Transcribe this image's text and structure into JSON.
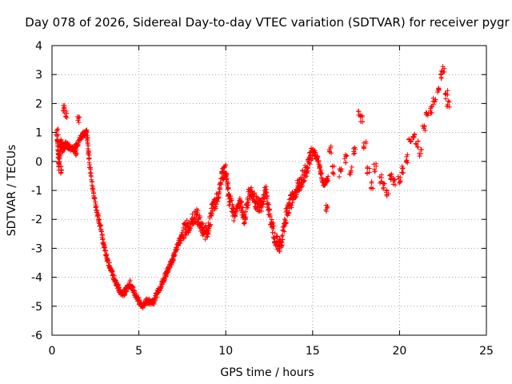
{
  "chart_data": {
    "type": "scatter",
    "title": "Day 078 of 2026, Sidereal Day-to-day VTEC variation (SDTVAR) for receiver pygr",
    "xlabel": "GPS time / hours",
    "ylabel": "SDTVAR / TECUs",
    "xlim": [
      0,
      25
    ],
    "ylim": [
      -6,
      4
    ],
    "xticks": [
      0,
      5,
      10,
      15,
      20,
      25
    ],
    "yticks": [
      -6,
      -5,
      -4,
      -3,
      -2,
      -1,
      0,
      1,
      2,
      3,
      4
    ],
    "grid": true,
    "marker": "+",
    "color": "#ff0000",
    "series": [
      {
        "name": "SDTVAR",
        "trace": [
          [
            0.3,
            0.8
          ],
          [
            0.4,
            -0.2
          ],
          [
            0.5,
            0.7
          ],
          [
            0.6,
            0.4
          ],
          [
            0.8,
            0.6
          ],
          [
            1.0,
            0.5
          ],
          [
            1.3,
            0.4
          ],
          [
            1.7,
            0.9
          ],
          [
            2.0,
            1.0
          ],
          [
            2.2,
            -0.3
          ],
          [
            2.5,
            -1.5
          ],
          [
            2.8,
            -2.3
          ],
          [
            3.1,
            -3.2
          ],
          [
            3.4,
            -3.8
          ],
          [
            3.7,
            -4.2
          ],
          [
            4.0,
            -4.6
          ],
          [
            4.2,
            -4.5
          ],
          [
            4.5,
            -4.2
          ],
          [
            4.8,
            -4.6
          ],
          [
            5.2,
            -5.0
          ],
          [
            5.5,
            -4.8
          ],
          [
            5.8,
            -4.9
          ],
          [
            6.1,
            -4.5
          ],
          [
            6.4,
            -4.1
          ],
          [
            6.7,
            -3.7
          ],
          [
            7.0,
            -3.3
          ],
          [
            7.3,
            -2.8
          ],
          [
            7.6,
            -2.4
          ],
          [
            7.9,
            -2.2
          ],
          [
            8.3,
            -1.8
          ],
          [
            8.6,
            -2.3
          ],
          [
            8.9,
            -2.5
          ],
          [
            9.2,
            -1.7
          ],
          [
            9.5,
            -1.3
          ],
          [
            9.8,
            -0.5
          ],
          [
            10.0,
            -0.3
          ],
          [
            10.2,
            -1.3
          ],
          [
            10.5,
            -1.9
          ],
          [
            10.8,
            -1.4
          ],
          [
            11.1,
            -2.0
          ],
          [
            11.4,
            -0.9
          ],
          [
            11.7,
            -1.4
          ],
          [
            12.0,
            -1.6
          ],
          [
            12.3,
            -1.0
          ],
          [
            12.6,
            -2.1
          ],
          [
            12.9,
            -2.8
          ],
          [
            13.2,
            -2.9
          ],
          [
            13.5,
            -1.8
          ],
          [
            13.8,
            -1.3
          ],
          [
            14.1,
            -0.9
          ],
          [
            14.4,
            -0.6
          ],
          [
            14.7,
            -0.2
          ],
          [
            15.0,
            0.4
          ],
          [
            15.3,
            0.1
          ],
          [
            15.6,
            -0.8
          ],
          [
            15.9,
            -0.6
          ]
        ],
        "extra_points": [
          [
            0.3,
            1.0
          ],
          [
            0.5,
            -0.3
          ],
          [
            0.7,
            1.8
          ],
          [
            0.8,
            1.6
          ],
          [
            1.5,
            1.4
          ],
          [
            1.4,
            0.3
          ],
          [
            15.8,
            -1.6
          ],
          [
            16.0,
            0.4
          ],
          [
            16.2,
            -0.3
          ],
          [
            16.6,
            -0.4
          ],
          [
            16.9,
            0.1
          ],
          [
            17.2,
            -0.3
          ],
          [
            17.4,
            0.4
          ],
          [
            17.7,
            1.6
          ],
          [
            17.8,
            1.5
          ],
          [
            18.0,
            0.6
          ],
          [
            18.2,
            -0.3
          ],
          [
            18.4,
            -0.8
          ],
          [
            18.6,
            -0.2
          ],
          [
            18.9,
            -0.6
          ],
          [
            19.1,
            -0.9
          ],
          [
            19.3,
            -1.1
          ],
          [
            19.5,
            -0.5
          ],
          [
            19.7,
            -0.7
          ],
          [
            20.0,
            -0.6
          ],
          [
            20.2,
            -0.3
          ],
          [
            20.4,
            0.1
          ],
          [
            20.6,
            0.8
          ],
          [
            20.8,
            0.9
          ],
          [
            21.0,
            0.6
          ],
          [
            21.2,
            0.3
          ],
          [
            21.4,
            1.1
          ],
          [
            21.6,
            1.6
          ],
          [
            21.8,
            1.8
          ],
          [
            22.0,
            2.1
          ],
          [
            22.2,
            2.5
          ],
          [
            22.4,
            3.0
          ],
          [
            22.5,
            3.2
          ],
          [
            22.7,
            2.3
          ],
          [
            22.8,
            2.0
          ]
        ]
      }
    ]
  }
}
